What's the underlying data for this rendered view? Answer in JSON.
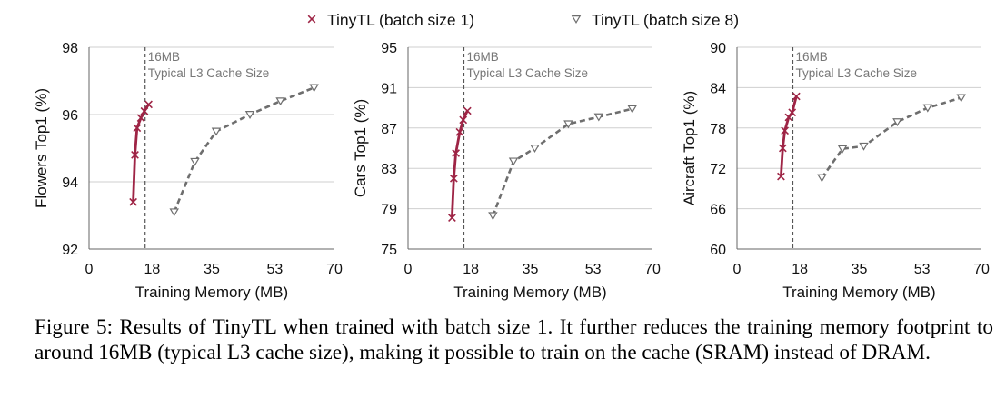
{
  "legend": [
    {
      "name": "TinyTL (batch size 1)",
      "color": "#9e2445",
      "marker": "x",
      "dash": false
    },
    {
      "name": "TinyTL (batch size 8)",
      "color": "#6e6e6e",
      "marker": "triangle-down",
      "dash": true
    }
  ],
  "annotation": {
    "line1": "16MB",
    "line2": "Typical L3 Cache Size",
    "x_value": 16
  },
  "chart_data": [
    {
      "type": "line",
      "xlabel": "Training Memory (MB)",
      "ylabel": "Flowers Top1 (%)",
      "xlim": [
        0,
        70
      ],
      "ylim": [
        92,
        98
      ],
      "xticks": [
        0,
        18,
        35,
        53,
        70
      ],
      "yticks": [
        92,
        94,
        96,
        98
      ],
      "gridlines": [
        94,
        96,
        98
      ],
      "series": [
        {
          "name": "TinyTL (batch size 1)",
          "x": [
            12.6,
            13.1,
            13.7,
            14.8,
            15.8,
            17.0
          ],
          "y": [
            93.4,
            94.8,
            95.6,
            95.9,
            96.1,
            96.3
          ]
        },
        {
          "name": "TinyTL (batch size 8)",
          "x": [
            24.3,
            30.2,
            36.3,
            45.9,
            54.6,
            64.2
          ],
          "y": [
            93.1,
            94.6,
            95.5,
            96.0,
            96.4,
            96.8
          ]
        }
      ]
    },
    {
      "type": "line",
      "xlabel": "Training Memory (MB)",
      "ylabel": "Cars Top1 (%)",
      "xlim": [
        0,
        70
      ],
      "ylim": [
        75,
        95
      ],
      "xticks": [
        0,
        18,
        35,
        53,
        70
      ],
      "yticks": [
        75,
        79,
        83,
        87,
        91,
        95
      ],
      "gridlines": [
        79,
        83,
        87,
        91,
        95
      ],
      "series": [
        {
          "name": "TinyTL (batch size 1)",
          "x": [
            12.6,
            13.1,
            13.7,
            14.8,
            15.8,
            17.0
          ],
          "y": [
            78.1,
            82.0,
            84.5,
            86.6,
            87.8,
            88.7
          ]
        },
        {
          "name": "TinyTL (batch size 8)",
          "x": [
            24.3,
            30.2,
            36.3,
            45.9,
            54.6,
            64.2
          ],
          "y": [
            78.3,
            83.7,
            85.0,
            87.4,
            88.1,
            88.9
          ]
        }
      ]
    },
    {
      "type": "line",
      "xlabel": "Training Memory (MB)",
      "ylabel": "Aircraft Top1 (%)",
      "xlim": [
        0,
        70
      ],
      "ylim": [
        60,
        90
      ],
      "xticks": [
        0,
        18,
        35,
        53,
        70
      ],
      "yticks": [
        60,
        66,
        72,
        78,
        84,
        90
      ],
      "gridlines": [
        66,
        72,
        78,
        84,
        90
      ],
      "series": [
        {
          "name": "TinyTL (batch size 1)",
          "x": [
            12.6,
            13.1,
            13.7,
            14.8,
            15.8,
            17.0
          ],
          "y": [
            70.8,
            75.0,
            77.6,
            79.6,
            80.3,
            82.7
          ]
        },
        {
          "name": "TinyTL (batch size 8)",
          "x": [
            24.3,
            30.2,
            36.3,
            45.9,
            54.6,
            64.2
          ],
          "y": [
            70.6,
            74.9,
            75.3,
            78.9,
            81.0,
            82.5
          ]
        }
      ]
    }
  ],
  "caption": "Figure 5: Results of TinyTL when trained with batch size 1. It further reduces the training memory footprint to around 16MB (typical L3 cache size), making it possible to train on the cache (SRAM) instead of DRAM."
}
